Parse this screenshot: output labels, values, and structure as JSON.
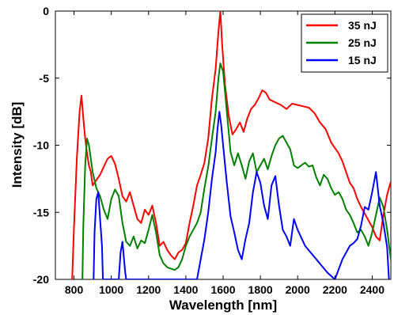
{
  "chart_data": {
    "type": "line",
    "xlabel": "Wavelength [nm]",
    "ylabel": "Intensity [dB]",
    "xlim": [
      700,
      2500
    ],
    "ylim": [
      -20,
      0
    ],
    "xticks": [
      800,
      1000,
      1200,
      1400,
      1600,
      1800,
      2000,
      2200,
      2400
    ],
    "yticks": [
      0,
      -5,
      -10,
      -15,
      -20
    ],
    "legend_position": "top-right",
    "grid": false,
    "series": [
      {
        "name": "35 nJ",
        "color": "#ff0000",
        "x": [
          790,
          800,
          815,
          830,
          840,
          850,
          860,
          870,
          880,
          890,
          900,
          920,
          940,
          960,
          980,
          1000,
          1020,
          1040,
          1060,
          1080,
          1100,
          1120,
          1140,
          1160,
          1180,
          1200,
          1220,
          1240,
          1260,
          1280,
          1300,
          1320,
          1340,
          1360,
          1380,
          1400,
          1420,
          1440,
          1460,
          1480,
          1500,
          1520,
          1540,
          1560,
          1575,
          1585,
          1595,
          1610,
          1630,
          1650,
          1670,
          1690,
          1710,
          1730,
          1750,
          1770,
          1790,
          1810,
          1830,
          1850,
          1880,
          1910,
          1940,
          1970,
          2000,
          2030,
          2060,
          2090,
          2120,
          2150,
          2180,
          2200,
          2220,
          2240,
          2260,
          2280,
          2300,
          2320,
          2340,
          2360,
          2380,
          2400,
          2420,
          2440,
          2460,
          2480,
          2500
        ],
        "y": [
          -20,
          -16,
          -11,
          -7.5,
          -6.3,
          -8,
          -9.5,
          -10.6,
          -11.5,
          -12,
          -13,
          -12.6,
          -12.2,
          -11.6,
          -11,
          -10.8,
          -11.4,
          -12.5,
          -13.8,
          -14.2,
          -13.5,
          -14.5,
          -15.5,
          -15.8,
          -14.8,
          -15.2,
          -14.5,
          -15.8,
          -17.5,
          -17.2,
          -17.8,
          -18.2,
          -18.5,
          -18,
          -17.8,
          -17.3,
          -15.8,
          -14.5,
          -13,
          -12.2,
          -11.3,
          -9.5,
          -6.5,
          -4.3,
          -1.5,
          0,
          -2.5,
          -5.5,
          -7.8,
          -9.2,
          -8.8,
          -8.3,
          -9,
          -8,
          -7.3,
          -7,
          -6.5,
          -5.9,
          -6.1,
          -6.6,
          -6.8,
          -7,
          -7.3,
          -6.9,
          -7,
          -7.1,
          -7.2,
          -7.6,
          -8.3,
          -8.8,
          -9.8,
          -10.2,
          -10.6,
          -11.2,
          -12,
          -12.8,
          -13.2,
          -14,
          -14.6,
          -15.1,
          -15.6,
          -16.1,
          -16.8,
          -17.1,
          -15.2,
          -13.7,
          -12.7
        ]
      },
      {
        "name": "25 nJ",
        "color": "#008000",
        "x": [
          845,
          850,
          860,
          870,
          880,
          890,
          900,
          920,
          940,
          960,
          980,
          1000,
          1020,
          1040,
          1060,
          1080,
          1100,
          1120,
          1140,
          1160,
          1180,
          1200,
          1220,
          1240,
          1260,
          1280,
          1300,
          1320,
          1340,
          1360,
          1380,
          1400,
          1420,
          1440,
          1460,
          1480,
          1500,
          1520,
          1540,
          1560,
          1575,
          1585,
          1600,
          1620,
          1640,
          1660,
          1680,
          1700,
          1720,
          1740,
          1760,
          1780,
          1800,
          1820,
          1840,
          1860,
          1880,
          1900,
          1920,
          1940,
          1960,
          1980,
          2000,
          2020,
          2040,
          2060,
          2080,
          2100,
          2120,
          2140,
          2160,
          2180,
          2200,
          2220,
          2240,
          2260,
          2280,
          2300,
          2320,
          2340,
          2360,
          2380,
          2400,
          2420,
          2440,
          2460,
          2480,
          2500
        ],
        "y": [
          -20,
          -16,
          -11.5,
          -9.5,
          -10,
          -11,
          -12,
          -13.2,
          -13.8,
          -14.8,
          -15.5,
          -14,
          -13.3,
          -13.8,
          -15.8,
          -17.2,
          -17.5,
          -16.8,
          -17.7,
          -17.1,
          -17.3,
          -16.3,
          -15.2,
          -16.5,
          -18.2,
          -18.8,
          -19.1,
          -19.2,
          -19.3,
          -19.1,
          -18.5,
          -17.5,
          -16.8,
          -16.3,
          -15.8,
          -15,
          -13.2,
          -11.6,
          -9.5,
          -7.5,
          -5,
          -3.9,
          -4.5,
          -7.5,
          -10.5,
          -11.5,
          -10.6,
          -11.5,
          -12.5,
          -11.2,
          -10.6,
          -12,
          -11.5,
          -11,
          -11.8,
          -10.8,
          -10,
          -9.5,
          -9.3,
          -9.8,
          -10.3,
          -11.5,
          -11.7,
          -11.5,
          -11.3,
          -11.6,
          -11.5,
          -12.4,
          -13,
          -12.2,
          -12.5,
          -13.2,
          -13.7,
          -13.5,
          -14,
          -14.8,
          -15.2,
          -15.8,
          -16.5,
          -16.3,
          -16.8,
          -17.5,
          -16.5,
          -15.2,
          -13.9,
          -14.6,
          -16.3,
          -18.5
        ]
      },
      {
        "name": "15 nJ",
        "color": "#0000ff",
        "x": [
          905,
          910,
          920,
          930,
          940,
          950,
          955,
          1040,
          1050,
          1060,
          1065,
          1075,
          1080,
          1460,
          1480,
          1500,
          1520,
          1540,
          1560,
          1570,
          1580,
          1590,
          1600,
          1620,
          1640,
          1660,
          1680,
          1700,
          1720,
          1740,
          1760,
          1780,
          1800,
          1820,
          1840,
          1860,
          1880,
          1900,
          1920,
          1940,
          1960,
          1980,
          2000,
          2040,
          2100,
          2160,
          2200,
          2240,
          2280,
          2300,
          2320,
          2340,
          2360,
          2380,
          2400,
          2420,
          2440,
          2460,
          2480,
          2490
        ],
        "y": [
          -20,
          -16.5,
          -14,
          -13.5,
          -15.5,
          -17.5,
          -20,
          -20,
          -18,
          -17.2,
          -18,
          -19.5,
          -20,
          -20,
          -18.5,
          -17,
          -15,
          -12.5,
          -10.5,
          -8.8,
          -7.5,
          -8.5,
          -10,
          -12.8,
          -15.3,
          -16.5,
          -17.8,
          -18.5,
          -17,
          -15.8,
          -13.5,
          -12,
          -12.8,
          -14.5,
          -15.5,
          -13,
          -12.3,
          -14.5,
          -16.3,
          -16.8,
          -17.5,
          -15.5,
          -16.3,
          -17.5,
          -18.5,
          -19.5,
          -20,
          -18.5,
          -17.5,
          -17.3,
          -17,
          -16,
          -14.6,
          -14.8,
          -13.5,
          -12,
          -14.5,
          -15.8,
          -17.6,
          -20
        ]
      }
    ]
  }
}
